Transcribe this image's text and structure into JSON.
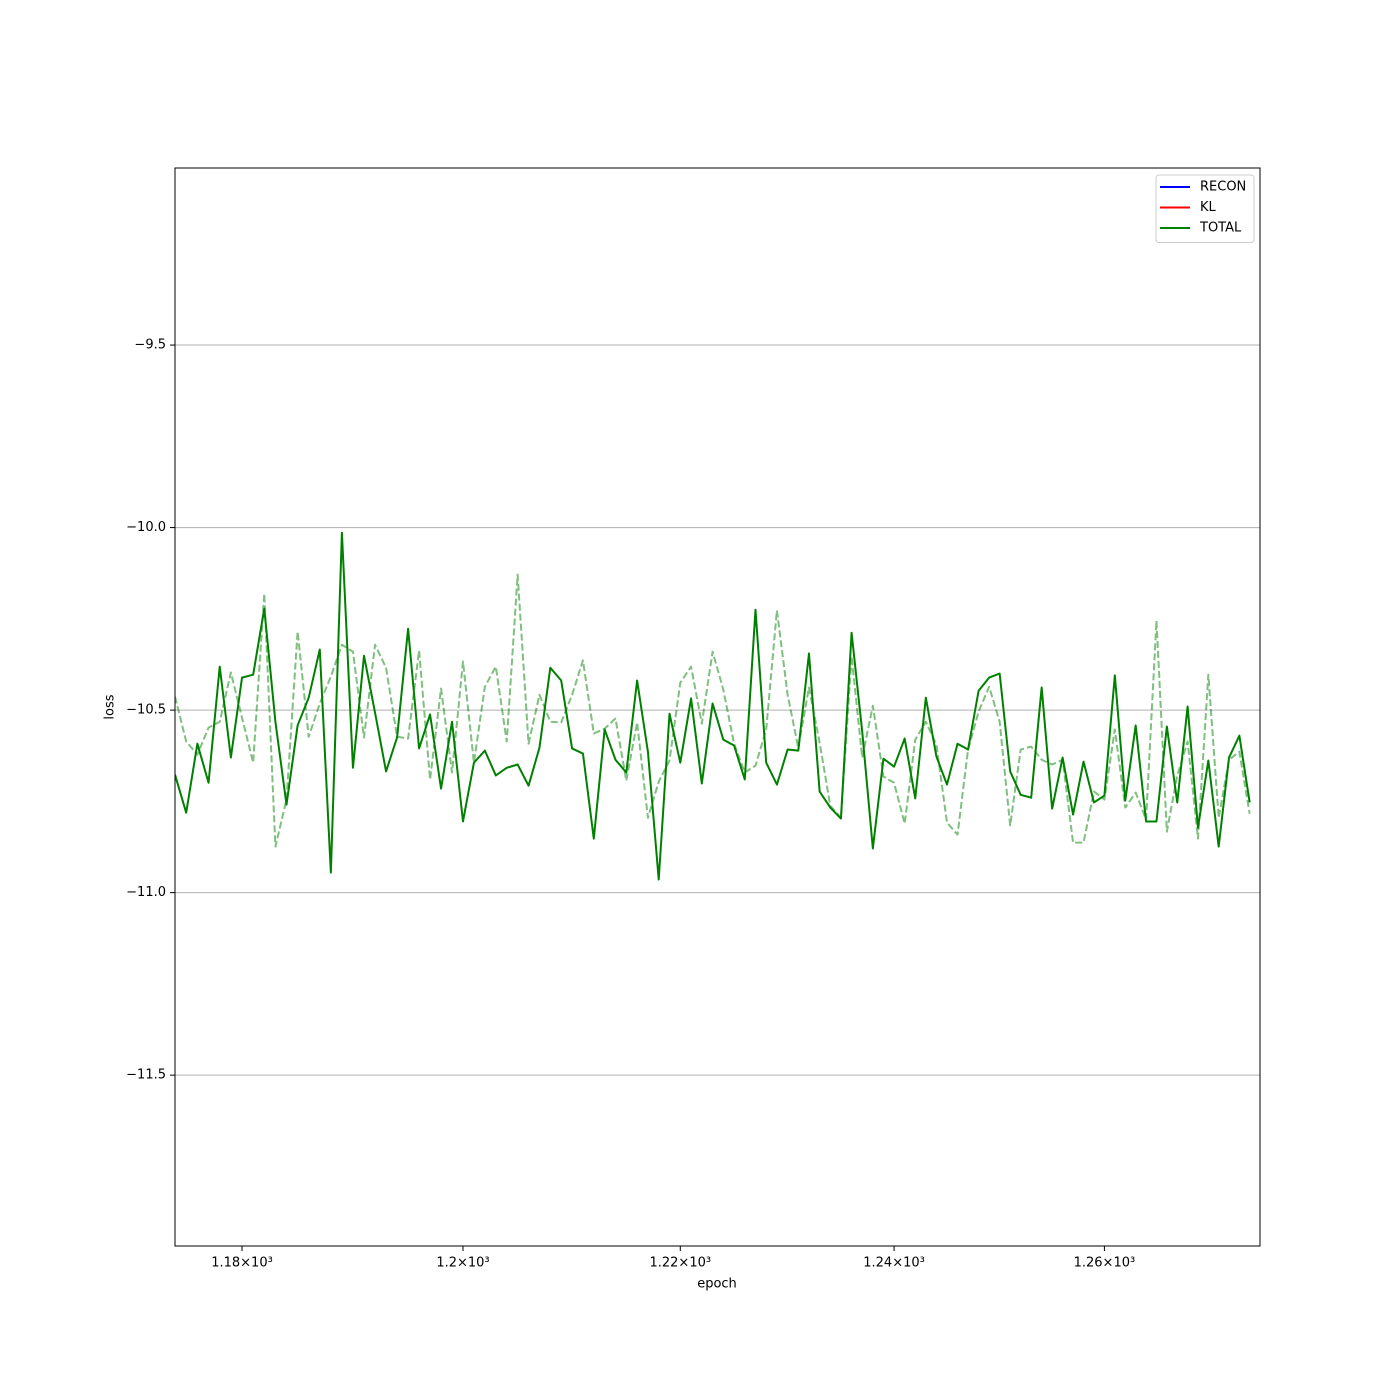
{
  "chart_data": {
    "type": "line",
    "x_label": "epoch",
    "y_label": "loss",
    "x_scale": "log",
    "grid": "y",
    "legend": "upper right",
    "xlim": [
      1174,
      1275
    ],
    "ylim": [
      -11.968,
      -9.015
    ],
    "xticks": [
      {
        "value": 1180,
        "label": "1.18×10³"
      },
      {
        "value": 1200,
        "label": "1.2×10³"
      },
      {
        "value": 1220,
        "label": "1.22×10³"
      },
      {
        "value": 1240,
        "label": "1.24×10³"
      },
      {
        "value": 1260,
        "label": "1.26×10³"
      }
    ],
    "yticks": [
      {
        "value": -11.5,
        "label": "−11.5"
      },
      {
        "value": -11.0,
        "label": "−11.0"
      },
      {
        "value": -10.5,
        "label": "−10.5"
      },
      {
        "value": -10.0,
        "label": "−10.0"
      },
      {
        "value": -9.5,
        "label": "−9.5"
      }
    ],
    "x": [
      1174,
      1175,
      1176,
      1177,
      1178,
      1179,
      1180,
      1181,
      1182,
      1183,
      1184,
      1185,
      1186,
      1187,
      1188,
      1189,
      1190,
      1191,
      1192,
      1193,
      1194,
      1195,
      1196,
      1197,
      1198,
      1199,
      1200,
      1201,
      1202,
      1203,
      1204,
      1205,
      1206,
      1207,
      1208,
      1209,
      1210,
      1211,
      1212,
      1213,
      1214,
      1215,
      1216,
      1217,
      1218,
      1219,
      1220,
      1221,
      1222,
      1223,
      1224,
      1225,
      1226,
      1227,
      1228,
      1229,
      1230,
      1231,
      1232,
      1233,
      1234,
      1235,
      1236,
      1237,
      1238,
      1239,
      1240,
      1241,
      1242,
      1243,
      1244,
      1245,
      1246,
      1247,
      1248,
      1249,
      1250,
      1251,
      1252,
      1253,
      1254,
      1255,
      1256,
      1257,
      1258,
      1259,
      1260,
      1261,
      1262,
      1263,
      1264,
      1265,
      1266,
      1267,
      1268,
      1269,
      1270,
      1271,
      1272,
      1273,
      1274
    ],
    "series": [
      {
        "name": "RECON",
        "color": "#0000ff",
        "linestyle": "solid",
        "values": [
          null,
          null,
          null,
          null,
          null,
          null,
          null,
          null,
          null,
          null,
          null,
          null,
          null,
          null,
          null,
          null,
          null,
          null,
          null,
          null,
          null,
          null,
          null,
          null,
          null,
          null,
          null,
          null,
          null,
          null,
          null,
          null,
          null,
          null,
          null,
          null,
          null,
          null,
          null,
          null,
          null,
          null,
          null,
          null,
          null,
          null,
          null,
          null,
          null,
          null,
          null,
          null,
          null,
          null,
          null,
          null,
          null,
          null,
          null,
          null,
          null,
          null,
          null,
          null,
          null,
          null,
          null,
          null,
          null,
          null,
          null,
          null,
          null,
          null,
          null,
          null,
          null,
          null,
          null,
          null,
          null,
          null,
          null,
          null,
          null,
          null,
          null,
          null,
          null,
          null,
          null,
          null,
          null,
          null,
          null,
          null,
          null,
          null,
          null,
          null,
          null
        ]
      },
      {
        "name": "KL",
        "color": "#ff0000",
        "linestyle": "solid",
        "values": [
          null,
          null,
          null,
          null,
          null,
          null,
          null,
          null,
          null,
          null,
          null,
          null,
          null,
          null,
          null,
          null,
          null,
          null,
          null,
          null,
          null,
          null,
          null,
          null,
          null,
          null,
          null,
          null,
          null,
          null,
          null,
          null,
          null,
          null,
          null,
          null,
          null,
          null,
          null,
          null,
          null,
          null,
          null,
          null,
          null,
          null,
          null,
          null,
          null,
          null,
          null,
          null,
          null,
          null,
          null,
          null,
          null,
          null,
          null,
          null,
          null,
          null,
          null,
          null,
          null,
          null,
          null,
          null,
          null,
          null,
          null,
          null,
          null,
          null,
          null,
          null,
          null,
          null,
          null,
          null,
          null,
          null,
          null,
          null,
          null,
          null,
          null,
          null,
          null,
          null,
          null,
          null,
          null,
          null,
          null,
          null,
          null,
          null,
          null,
          null,
          null
        ]
      },
      {
        "name": "TOTAL",
        "color": "#008000",
        "linestyle": "solid",
        "values": [
          -10.677,
          -10.781,
          -10.592,
          -10.699,
          -10.381,
          -10.63,
          -10.411,
          -10.403,
          -10.222,
          -10.532,
          -10.759,
          -10.542,
          -10.466,
          -10.334,
          -10.945,
          -10.014,
          -10.658,
          -10.351,
          -10.507,
          -10.668,
          -10.575,
          -10.277,
          -10.605,
          -10.512,
          -10.715,
          -10.532,
          -10.805,
          -10.644,
          -10.611,
          -10.679,
          -10.658,
          -10.649,
          -10.707,
          -10.603,
          -10.384,
          -10.419,
          -10.605,
          -10.619,
          -10.852,
          -10.553,
          -10.636,
          -10.671,
          -10.419,
          -10.614,
          -10.964,
          -10.51,
          -10.644,
          -10.468,
          -10.701,
          -10.482,
          -10.581,
          -10.597,
          -10.69,
          -10.225,
          -10.644,
          -10.704,
          -10.608,
          -10.611,
          -10.345,
          -10.723,
          -10.767,
          -10.797,
          -10.288,
          -10.559,
          -10.879,
          -10.633,
          -10.655,
          -10.578,
          -10.742,
          -10.466,
          -10.627,
          -10.704,
          -10.592,
          -10.608,
          -10.447,
          -10.411,
          -10.4,
          -10.668,
          -10.732,
          -10.74,
          -10.438,
          -10.77,
          -10.63,
          -10.786,
          -10.641,
          -10.753,
          -10.734,
          -10.405,
          -10.748,
          -10.542,
          -10.805,
          -10.805,
          -10.545,
          -10.753,
          -10.49,
          -10.822,
          -10.638,
          -10.874,
          -10.63,
          -10.57,
          -10.753
        ]
      },
      {
        "color": "#008000",
        "linestyle": "dashed",
        "alpha": 0.5,
        "values": [
          -10.463,
          -10.586,
          -10.622,
          -10.548,
          -10.532,
          -10.397,
          -10.521,
          -10.644,
          -10.181,
          -10.874,
          -10.745,
          -10.285,
          -10.573,
          -10.482,
          -10.408,
          -10.321,
          -10.34,
          -10.575,
          -10.321,
          -10.384,
          -10.573,
          -10.578,
          -10.337,
          -10.69,
          -10.441,
          -10.671,
          -10.367,
          -10.644,
          -10.436,
          -10.381,
          -10.586,
          -10.129,
          -10.592,
          -10.458,
          -10.532,
          -10.534,
          -10.458,
          -10.364,
          -10.564,
          -10.551,
          -10.523,
          -10.693,
          -10.534,
          -10.795,
          -10.696,
          -10.638,
          -10.425,
          -10.381,
          -10.537,
          -10.34,
          -10.444,
          -10.592,
          -10.671,
          -10.652,
          -10.553,
          -10.227,
          -10.458,
          -10.603,
          -10.438,
          -10.589,
          -10.762,
          -10.795,
          -10.353,
          -10.63,
          -10.488,
          -10.682,
          -10.699,
          -10.811,
          -10.581,
          -10.532,
          -10.595,
          -10.808,
          -10.841,
          -10.608,
          -10.504,
          -10.436,
          -10.532,
          -10.816,
          -10.608,
          -10.6,
          -10.636,
          -10.649,
          -10.636,
          -10.863,
          -10.863,
          -10.723,
          -10.745,
          -10.553,
          -10.767,
          -10.726,
          -10.8,
          -10.255,
          -10.833,
          -10.679,
          -10.586,
          -10.852,
          -10.403,
          -10.795,
          -10.636,
          -10.614,
          -10.784
        ]
      }
    ]
  }
}
